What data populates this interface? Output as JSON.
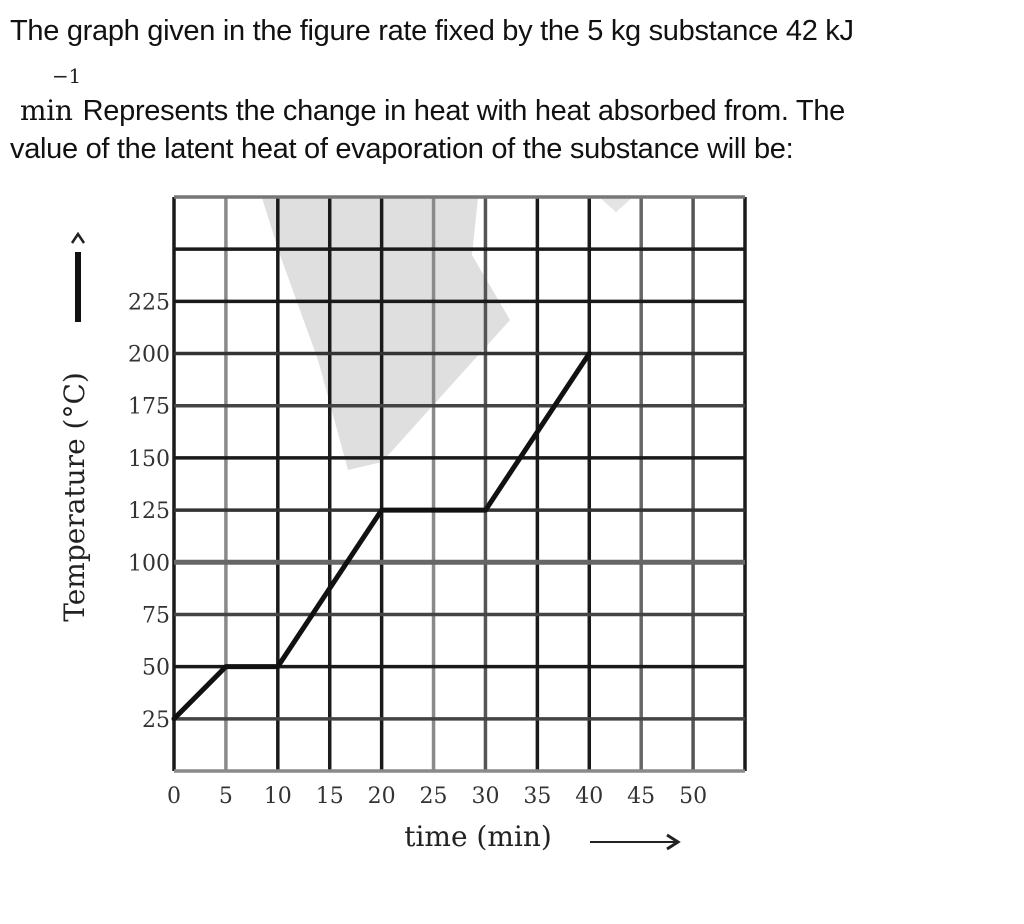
{
  "question": {
    "line1": "The graph given in the figure rate fixed by the 5 kg substance 42 kJ",
    "superscript": "−1",
    "unit_min": "min",
    "line2": "Represents the change in heat with heat absorbed from. The",
    "line3": "value of the latent heat of evaporation of the substance will be:"
  },
  "chart_data": {
    "type": "line",
    "title": "",
    "xlabel": "time (min)",
    "ylabel": "Temperature (°C)",
    "x_ticks": [
      "0",
      "5",
      "10",
      "15",
      "20",
      "25",
      "30",
      "35",
      "40",
      "45",
      "50"
    ],
    "y_ticks": [
      "25",
      "50",
      "75",
      "100",
      "125",
      "150",
      "175",
      "200",
      "225"
    ],
    "xlim": [
      0,
      55
    ],
    "ylim": [
      0,
      275
    ],
    "grid": true,
    "legend": null,
    "series": [
      {
        "name": "Temperature vs time",
        "x": [
          0,
          5,
          10,
          20,
          30,
          40
        ],
        "y": [
          25,
          50,
          50,
          125,
          125,
          200
        ]
      }
    ],
    "colors": {
      "line": "#111111",
      "grid_dark": "#1a1a1a",
      "grid_light": "#8a8a8a",
      "watermark": "#dcdcdc"
    }
  }
}
